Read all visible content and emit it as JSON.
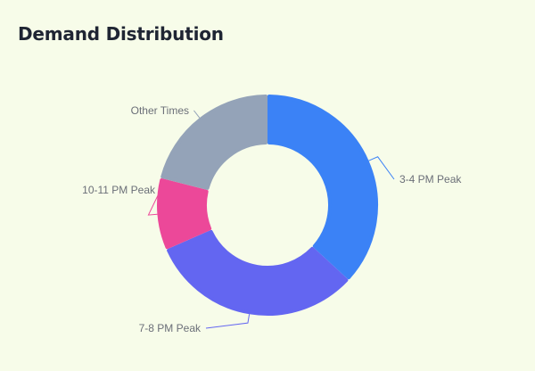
{
  "header": {
    "title": "Demand Distribution"
  },
  "chart_data": {
    "type": "pie",
    "title": "Demand Distribution",
    "donut": true,
    "categories": [
      "3-4 PM Peak",
      "7-8 PM Peak",
      "10-11 PM Peak",
      "Other Times"
    ],
    "values": [
      35,
      30,
      10,
      20
    ],
    "colors": [
      "#3b82f6",
      "#6366f1",
      "#ec4899",
      "#94a3b8"
    ],
    "legend": "none",
    "labels_position": "outside-with-leader-lines"
  }
}
